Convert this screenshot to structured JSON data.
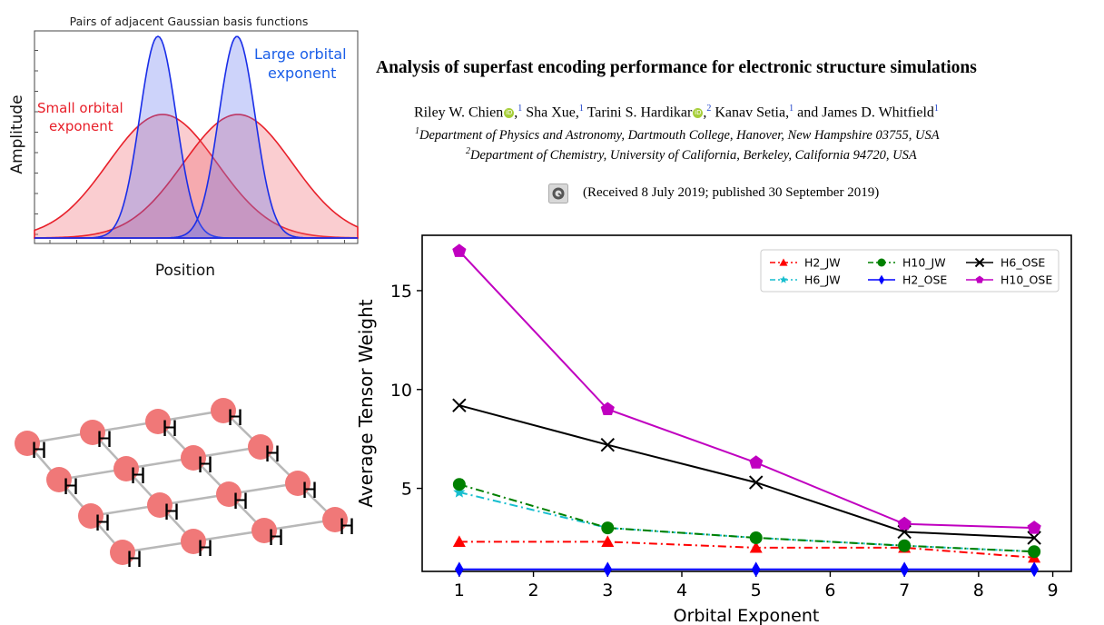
{
  "paper": {
    "title": "Analysis of superfast encoding performance for electronic structure simulations",
    "authors": [
      {
        "name": "Riley W. Chien",
        "sup": "1",
        "orcid": true
      },
      {
        "name": "Sha Xue",
        "sup": "1",
        "orcid": false
      },
      {
        "name": "Tarini S. Hardikar",
        "sup": "2",
        "orcid": true
      },
      {
        "name": "Kanav Setia",
        "sup": "1",
        "orcid": false
      },
      {
        "name": "James D. Whitfield",
        "sup": "1",
        "orcid": false
      }
    ],
    "and_word": "and",
    "affiliation_1_sup": "1",
    "affiliation_1": "Department of Physics and Astronomy, Dartmouth College, Hanover, New Hampshire 03755, USA",
    "affiliation_2_sup": "2",
    "affiliation_2": "Department of Chemistry, University of California, Berkeley, California 94720, USA",
    "received": "(Received 8 July 2019; published 30 September 2019)"
  },
  "gaussian_figure": {
    "title": "Pairs of adjacent Gaussian basis functions",
    "xlabel": "Position",
    "ylabel": "Amplitude",
    "annotation_small": [
      "Small orbital",
      "exponent"
    ],
    "annotation_large": [
      "Large orbital",
      "exponent"
    ],
    "small_color": "#e8202a",
    "large_color": "#1a2ee8"
  },
  "lattice_figure": {
    "atom_label": "H",
    "atom_color": "#f07878",
    "bond_color": "#b8b8b8"
  },
  "chart_data": {
    "type": "line",
    "title": "",
    "xlabel": "Orbital  Exponent",
    "ylabel": "Average Tensor Weight",
    "xlim": [
      0.5,
      9.25
    ],
    "ylim": [
      0.8,
      17.8
    ],
    "xticks": [
      1,
      2,
      3,
      4,
      5,
      6,
      7,
      8,
      9
    ],
    "yticks": [
      5,
      10,
      15
    ],
    "x": [
      1,
      3,
      5,
      7,
      8.75
    ],
    "grid": false,
    "legend": "top-right",
    "series": [
      {
        "name": "H2_JW",
        "color": "#ff0000",
        "marker": "triangle",
        "dash": "dashdot",
        "values": [
          2.3,
          2.3,
          2.0,
          2.0,
          1.5
        ]
      },
      {
        "name": "H6_JW",
        "color": "#17becf",
        "marker": "star",
        "dash": "dashdot",
        "values": [
          4.8,
          3.0,
          2.5,
          2.1,
          1.8
        ]
      },
      {
        "name": "H10_JW",
        "color": "#008000",
        "marker": "circle",
        "dash": "dashdot",
        "values": [
          5.2,
          3.0,
          2.5,
          2.1,
          1.8
        ]
      },
      {
        "name": "H2_OSE",
        "color": "#0000ff",
        "marker": "diamond",
        "dash": "solid",
        "values": [
          0.9,
          0.9,
          0.9,
          0.9,
          0.9
        ]
      },
      {
        "name": "H6_OSE",
        "color": "#000000",
        "marker": "x",
        "dash": "solid",
        "values": [
          9.2,
          7.2,
          5.3,
          2.8,
          2.5
        ]
      },
      {
        "name": "H10_OSE",
        "color": "#c000c0",
        "marker": "pentagon",
        "dash": "solid",
        "values": [
          17.0,
          9.0,
          6.3,
          3.2,
          3.0
        ]
      }
    ]
  }
}
